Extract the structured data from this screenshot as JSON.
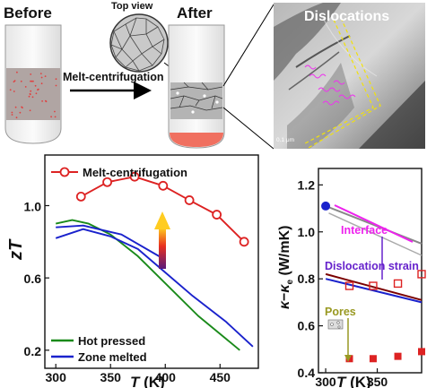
{
  "schematic": {
    "before_label": "Before",
    "after_label": "After",
    "top_view_label": "Top view",
    "process_label": "Melt-centrifugation"
  },
  "micrograph": {
    "label": "Dislocations",
    "scale_label": "0.1 μm"
  },
  "colors": {
    "melt_centrifugation": "#dd2222",
    "hot_pressed": "#1a8a1a",
    "zone_melted": "#1a22cc",
    "interface": "#ee22ee",
    "dislocation_strain": "#6622cc",
    "pores": "#999922"
  },
  "chart_data": [
    {
      "type": "line",
      "ylabel": "zT",
      "xlabel": "T (K)",
      "xlim": [
        290,
        485
      ],
      "ylim": [
        0.1,
        1.28
      ],
      "x_ticks": [
        300,
        350,
        400,
        450
      ],
      "y_ticks": [
        0.2,
        0.6,
        1.0
      ],
      "legend_position": "top-left",
      "annotation": "red-orange up arrow showing increase",
      "series": [
        {
          "name": "Melt-centrifugation",
          "markers": "open-circle",
          "x": [
            323,
            347,
            372,
            398,
            422,
            447,
            472
          ],
          "y": [
            1.05,
            1.13,
            1.16,
            1.11,
            1.03,
            0.95,
            0.8
          ]
        },
        {
          "name": "Hot pressed",
          "x": [
            300,
            315,
            330,
            350,
            375,
            400,
            430,
            468
          ],
          "y": [
            0.9,
            0.92,
            0.9,
            0.84,
            0.72,
            0.57,
            0.39,
            0.2
          ]
        },
        {
          "name": "Zone melted",
          "x": [
            300,
            325,
            350,
            375,
            400,
            425,
            455,
            480
          ],
          "y": [
            0.82,
            0.87,
            0.83,
            0.76,
            0.63,
            0.5,
            0.36,
            0.22
          ]
        },
        {
          "name": "",
          "x": [
            300,
            325,
            360,
            400
          ],
          "y": [
            0.88,
            0.89,
            0.84,
            0.7
          ]
        }
      ]
    },
    {
      "type": "line",
      "ylabel": "κ−κe (W/mK)",
      "xlabel": "T (K)",
      "xlim": [
        293,
        393
      ],
      "ylim": [
        0.4,
        1.27
      ],
      "x_ticks": [
        300,
        350
      ],
      "y_ticks": [
        0.4,
        0.6,
        0.8,
        1.0,
        1.2
      ],
      "annotations": [
        "Interface",
        "Dislocation strain",
        "Pores"
      ],
      "series": [
        {
          "name": "",
          "x": [
            300,
            393
          ],
          "y": [
            1.11,
            0.95
          ]
        },
        {
          "name": "",
          "x": [
            303,
            393
          ],
          "y": [
            1.08,
            0.9
          ]
        },
        {
          "name": "",
          "x": [
            300,
            393
          ],
          "y": [
            0.82,
            0.71
          ]
        },
        {
          "name": "",
          "x": [
            300,
            393
          ],
          "y": [
            0.8,
            0.7
          ]
        },
        {
          "name": "",
          "markers": "filled-circle",
          "x": [
            300
          ],
          "y": [
            1.11
          ]
        },
        {
          "name": "",
          "markers": "open-square",
          "x": [
            323,
            346,
            370,
            393
          ],
          "y": [
            0.77,
            0.77,
            0.78,
            0.82
          ]
        },
        {
          "name": "",
          "markers": "filled-square",
          "x": [
            323,
            346,
            370,
            393
          ],
          "y": [
            0.46,
            0.46,
            0.47,
            0.49
          ]
        }
      ]
    }
  ]
}
